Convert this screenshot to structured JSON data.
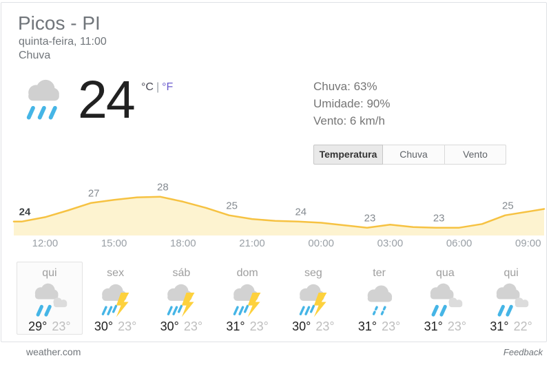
{
  "header": {
    "title": "Picos - PI",
    "datetime": "quinta-feira, 11:00",
    "condition": "Chuva"
  },
  "current": {
    "icon": "heavyrain",
    "temperature": "24",
    "unit_celsius": "°C",
    "unit_divider": "|",
    "unit_fahrenheit": "°F",
    "details": [
      "Chuva: 63%",
      "Umidade: 90%",
      "Vento: 6 km/h"
    ]
  },
  "tabs": [
    {
      "label": "Temperatura",
      "selected": true
    },
    {
      "label": "Chuva",
      "selected": false
    },
    {
      "label": "Vento",
      "selected": false
    }
  ],
  "chart_data": {
    "type": "area",
    "unit": "°C",
    "x": [
      "11:00",
      "12:00",
      "13:00",
      "14:00",
      "15:00",
      "16:00",
      "17:00",
      "18:00",
      "19:00",
      "20:00",
      "21:00",
      "22:00",
      "23:00",
      "00:00",
      "01:00",
      "02:00",
      "03:00",
      "04:00",
      "05:00",
      "06:00",
      "07:00",
      "08:00",
      "09:00"
    ],
    "values": [
      24,
      24.7,
      25.8,
      27,
      27.5,
      27.9,
      28,
      27.2,
      26.2,
      25,
      24.4,
      24.1,
      24,
      23.8,
      23.4,
      23,
      23.5,
      23.1,
      23,
      23,
      23.6,
      25,
      25.6
    ],
    "point_labels": [
      {
        "index": 0,
        "text": "24",
        "bold": true
      },
      {
        "index": 3,
        "text": "27",
        "bold": false
      },
      {
        "index": 6,
        "text": "28",
        "bold": false
      },
      {
        "index": 9,
        "text": "25",
        "bold": false
      },
      {
        "index": 12,
        "text": "24",
        "bold": false
      },
      {
        "index": 15,
        "text": "23",
        "bold": false
      },
      {
        "index": 18,
        "text": "23",
        "bold": false
      },
      {
        "index": 21,
        "text": "25",
        "bold": false
      }
    ],
    "tick_indices": [
      1,
      4,
      7,
      10,
      13,
      16,
      19,
      22
    ],
    "ylim": [
      22.3,
      29
    ],
    "line_color": "#f6c242",
    "fill_color": "#fdf3d0",
    "label_color": "#848a90",
    "bold_label_color": "#3c4043",
    "tick_color": "#9aa0a6",
    "grid": false,
    "legend": "none"
  },
  "days": [
    {
      "name": "qui",
      "icon": "rain",
      "high": "29°",
      "low": "23°",
      "selected": true
    },
    {
      "name": "sex",
      "icon": "storm",
      "high": "30°",
      "low": "23°",
      "selected": false
    },
    {
      "name": "sáb",
      "icon": "storm",
      "high": "30°",
      "low": "23°",
      "selected": false
    },
    {
      "name": "dom",
      "icon": "storm",
      "high": "31°",
      "low": "23°",
      "selected": false
    },
    {
      "name": "seg",
      "icon": "storm",
      "high": "30°",
      "low": "23°",
      "selected": false
    },
    {
      "name": "ter",
      "icon": "drizzle",
      "high": "31°",
      "low": "23°",
      "selected": false
    },
    {
      "name": "qua",
      "icon": "rain",
      "high": "31°",
      "low": "23°",
      "selected": false
    },
    {
      "name": "qui",
      "icon": "rain",
      "high": "31°",
      "low": "22°",
      "selected": false
    }
  ],
  "footer": {
    "source": "weather.com",
    "feedback": "Feedback"
  }
}
